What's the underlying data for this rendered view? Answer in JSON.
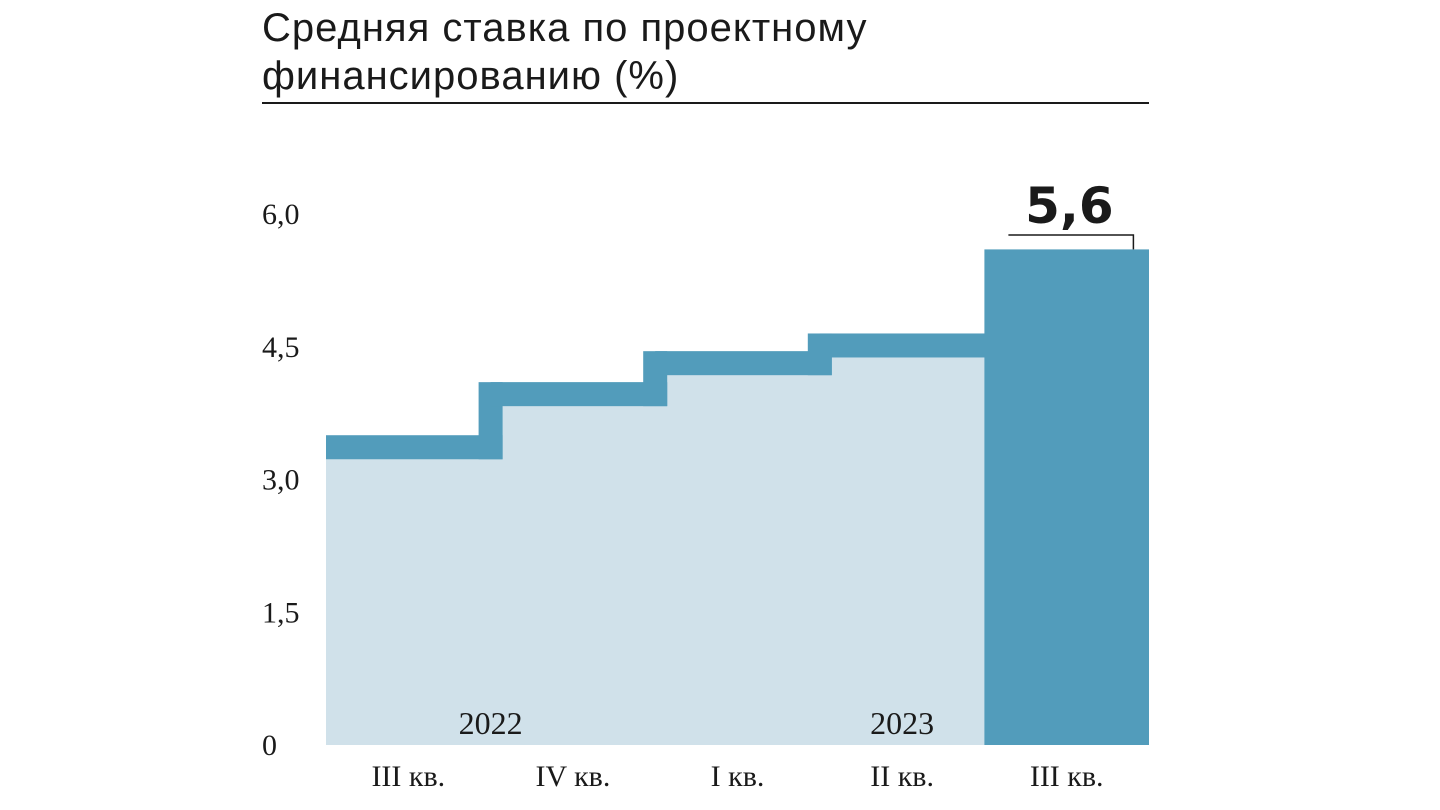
{
  "chart_data": {
    "type": "bar",
    "title": "Средняя ставка по проектному финансированию (%)",
    "categories": [
      "III кв.",
      "IV кв.",
      "I кв.",
      "II кв.",
      "III кв."
    ],
    "values": [
      3.5,
      4.1,
      4.45,
      4.65,
      5.6
    ],
    "ylim": [
      0,
      6.0
    ],
    "yticks": [
      "0",
      "1,5",
      "3,0",
      "4,5",
      "6,0"
    ],
    "ytick_values": [
      0,
      1.5,
      3.0,
      4.5,
      6.0
    ],
    "year_labels": [
      "2022",
      "2023"
    ],
    "highlight_label": "5,6",
    "grid": false,
    "colors": {
      "light": "#d0e1ea",
      "accent": "#529cbb",
      "text": "#1a1a1a"
    }
  }
}
